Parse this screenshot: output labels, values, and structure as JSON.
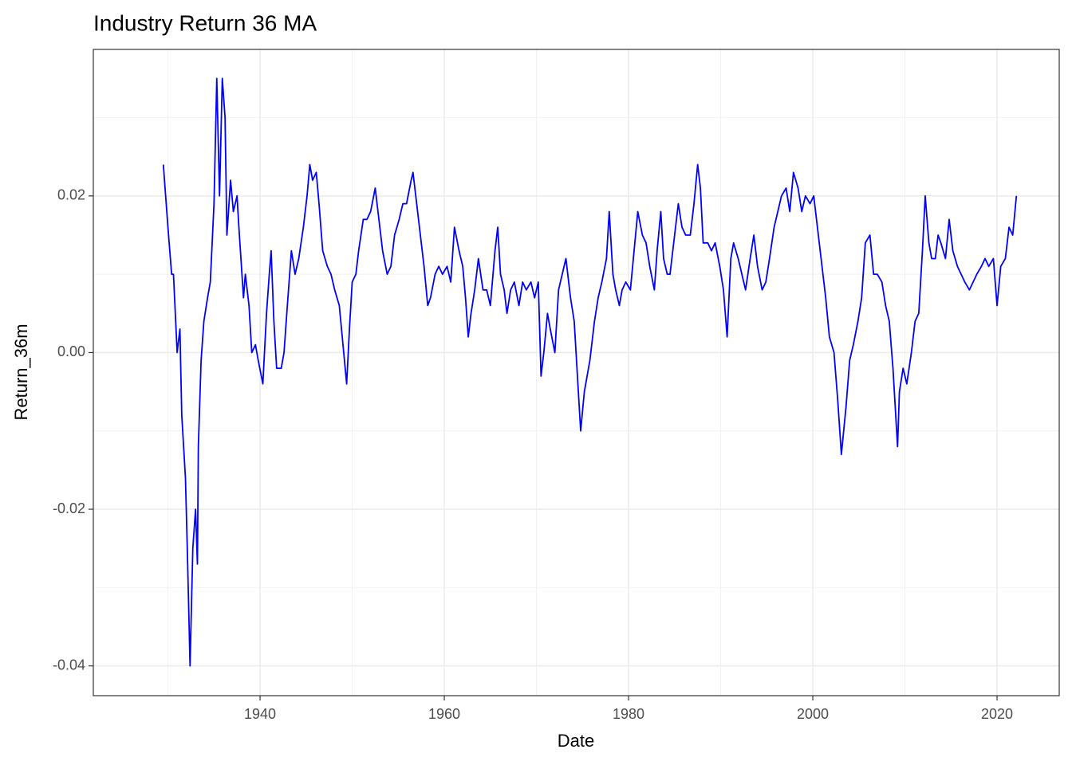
{
  "chart_data": {
    "type": "line",
    "title": "Industry Return 36 MA",
    "x_label": "Date",
    "y_label": "Return_36m",
    "x": [
      1929.5,
      1930.0,
      1930.4,
      1930.6,
      1931.0,
      1931.3,
      1931.5,
      1931.9,
      1932.1,
      1932.4,
      1932.7,
      1933.0,
      1933.2,
      1933.3,
      1933.6,
      1933.9,
      1934.3,
      1934.6,
      1935.0,
      1935.3,
      1935.6,
      1935.9,
      1936.2,
      1936.4,
      1936.8,
      1937.1,
      1937.5,
      1937.7,
      1938.2,
      1938.4,
      1938.8,
      1939.1,
      1939.5,
      1939.8,
      1940.3,
      1940.7,
      1941.0,
      1941.2,
      1941.5,
      1941.8,
      1942.3,
      1942.6,
      1942.9,
      1943.4,
      1943.8,
      1944.2,
      1944.7,
      1945.1,
      1945.4,
      1945.7,
      1946.1,
      1946.4,
      1946.8,
      1947.3,
      1947.7,
      1948.1,
      1948.6,
      1949.0,
      1949.4,
      1949.7,
      1950.0,
      1950.4,
      1950.7,
      1951.2,
      1951.6,
      1952.0,
      1952.5,
      1952.9,
      1953.3,
      1953.8,
      1954.2,
      1954.6,
      1955.1,
      1955.5,
      1955.9,
      1956.4,
      1956.6,
      1957.0,
      1957.4,
      1957.8,
      1958.2,
      1958.5,
      1959.0,
      1959.4,
      1959.8,
      1960.3,
      1960.7,
      1961.1,
      1961.6,
      1962.0,
      1962.3,
      1962.6,
      1962.9,
      1963.3,
      1963.7,
      1964.2,
      1964.6,
      1965.0,
      1965.5,
      1965.8,
      1966.1,
      1966.5,
      1966.8,
      1967.2,
      1967.6,
      1968.1,
      1968.5,
      1968.9,
      1969.4,
      1969.8,
      1970.2,
      1970.5,
      1970.8,
      1971.2,
      1971.5,
      1972.0,
      1972.4,
      1972.8,
      1973.2,
      1973.7,
      1974.1,
      1974.5,
      1974.8,
      1975.2,
      1975.5,
      1975.8,
      1976.3,
      1976.7,
      1977.1,
      1977.6,
      1977.9,
      1978.3,
      1978.6,
      1979.0,
      1979.3,
      1979.7,
      1980.2,
      1980.6,
      1981.0,
      1981.5,
      1981.9,
      1982.3,
      1982.8,
      1983.1,
      1983.5,
      1983.8,
      1984.2,
      1984.5,
      1984.9,
      1985.4,
      1985.8,
      1986.2,
      1986.7,
      1987.1,
      1987.5,
      1987.8,
      1988.1,
      1988.6,
      1989.0,
      1989.4,
      1989.9,
      1990.3,
      1990.7,
      1991.1,
      1991.4,
      1991.9,
      1992.3,
      1992.7,
      1993.2,
      1993.6,
      1994.0,
      1994.5,
      1994.9,
      1995.3,
      1995.8,
      1996.2,
      1996.6,
      1997.1,
      1997.5,
      1997.9,
      1998.4,
      1998.8,
      1999.2,
      1999.7,
      2000.1,
      2000.5,
      2001.0,
      2001.4,
      2001.8,
      2002.3,
      2002.7,
      2003.1,
      2003.6,
      2004.0,
      2004.4,
      2004.9,
      2005.3,
      2005.7,
      2006.2,
      2006.6,
      2007.0,
      2007.5,
      2007.9,
      2008.3,
      2008.7,
      2009.2,
      2009.4,
      2009.8,
      2010.2,
      2010.7,
      2011.1,
      2011.5,
      2011.9,
      2012.2,
      2012.6,
      2012.9,
      2013.3,
      2013.6,
      2013.9,
      2014.4,
      2014.8,
      2015.2,
      2015.7,
      2016.1,
      2016.5,
      2017.0,
      2017.4,
      2017.8,
      2018.3,
      2018.7,
      2019.1,
      2019.6,
      2020.0,
      2020.4,
      2020.9,
      2021.3,
      2021.7,
      2022.1
    ],
    "series": [
      {
        "name": "Return_36m",
        "color": "#0000ff",
        "values": [
          0.024,
          0.016,
          0.01,
          0.01,
          0.0,
          0.003,
          -0.008,
          -0.016,
          -0.025,
          -0.04,
          -0.025,
          -0.02,
          -0.027,
          -0.012,
          -0.001,
          0.004,
          0.007,
          0.009,
          0.019,
          0.035,
          0.02,
          0.035,
          0.03,
          0.015,
          0.022,
          0.018,
          0.02,
          0.016,
          0.007,
          0.01,
          0.006,
          0.0,
          0.001,
          -0.001,
          -0.004,
          0.005,
          0.01,
          0.013,
          0.004,
          -0.002,
          -0.002,
          0.0,
          0.005,
          0.013,
          0.01,
          0.012,
          0.016,
          0.02,
          0.024,
          0.022,
          0.023,
          0.019,
          0.013,
          0.011,
          0.01,
          0.008,
          0.006,
          0.001,
          -0.004,
          0.003,
          0.009,
          0.01,
          0.013,
          0.017,
          0.017,
          0.018,
          0.021,
          0.017,
          0.013,
          0.01,
          0.011,
          0.015,
          0.017,
          0.019,
          0.019,
          0.022,
          0.023,
          0.019,
          0.015,
          0.011,
          0.006,
          0.007,
          0.01,
          0.011,
          0.01,
          0.011,
          0.009,
          0.016,
          0.013,
          0.011,
          0.007,
          0.002,
          0.005,
          0.008,
          0.012,
          0.008,
          0.008,
          0.006,
          0.013,
          0.016,
          0.01,
          0.008,
          0.005,
          0.008,
          0.009,
          0.006,
          0.009,
          0.008,
          0.009,
          0.007,
          0.009,
          -0.003,
          0.0,
          0.005,
          0.003,
          0.0,
          0.008,
          0.01,
          0.012,
          0.007,
          0.004,
          -0.004,
          -0.01,
          -0.005,
          -0.003,
          -0.001,
          0.004,
          0.007,
          0.009,
          0.012,
          0.018,
          0.01,
          0.008,
          0.006,
          0.008,
          0.009,
          0.008,
          0.013,
          0.018,
          0.015,
          0.014,
          0.011,
          0.008,
          0.013,
          0.018,
          0.012,
          0.01,
          0.01,
          0.014,
          0.019,
          0.016,
          0.015,
          0.015,
          0.019,
          0.024,
          0.021,
          0.014,
          0.014,
          0.013,
          0.014,
          0.011,
          0.008,
          0.002,
          0.012,
          0.014,
          0.012,
          0.01,
          0.008,
          0.012,
          0.015,
          0.011,
          0.008,
          0.009,
          0.012,
          0.016,
          0.018,
          0.02,
          0.021,
          0.018,
          0.023,
          0.021,
          0.018,
          0.02,
          0.019,
          0.02,
          0.016,
          0.011,
          0.007,
          0.002,
          0.0,
          -0.006,
          -0.013,
          -0.007,
          -0.001,
          0.001,
          0.004,
          0.007,
          0.014,
          0.015,
          0.01,
          0.01,
          0.009,
          0.006,
          0.004,
          -0.002,
          -0.012,
          -0.005,
          -0.002,
          -0.004,
          0.0,
          0.004,
          0.005,
          0.013,
          0.02,
          0.014,
          0.012,
          0.012,
          0.015,
          0.014,
          0.012,
          0.017,
          0.013,
          0.011,
          0.01,
          0.009,
          0.008,
          0.009,
          0.01,
          0.011,
          0.012,
          0.011,
          0.012,
          0.006,
          0.011,
          0.012,
          0.016,
          0.015,
          0.02
        ]
      }
    ],
    "xlim": [
      1921.9,
      2026.75
    ],
    "ylim": [
      -0.0438,
      0.0387
    ],
    "xticks": [
      1940,
      1960,
      1980,
      2000,
      2020
    ],
    "yticks": [
      -0.04,
      -0.02,
      {
        "value": 0,
        "label": "0.00"
      },
      0.02
    ],
    "minor_xticks": [
      1930,
      1950,
      1970,
      1990,
      2010
    ],
    "minor_yticks": [
      -0.03,
      -0.01,
      0.01,
      0.03
    ],
    "grid": true
  }
}
